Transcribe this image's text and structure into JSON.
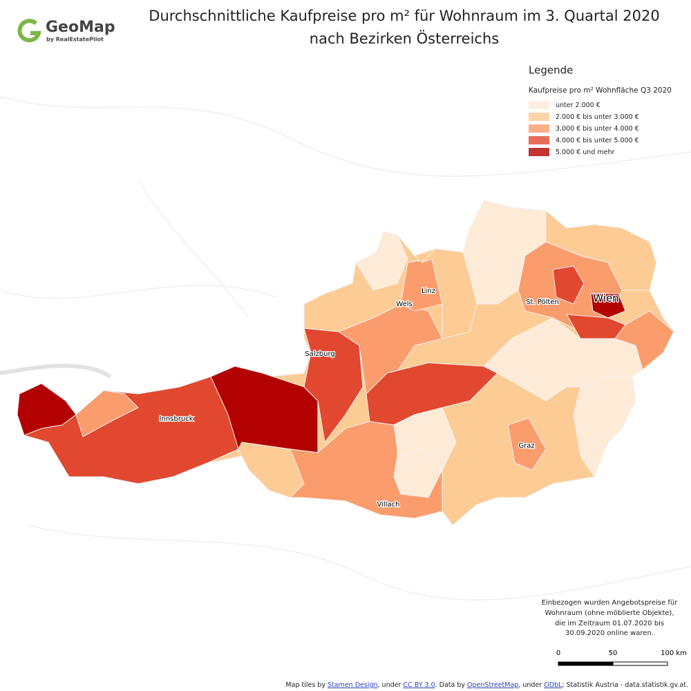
{
  "header": {
    "logo": "GeoMap",
    "logo_sub": "by RealEstatePilot",
    "title_lines": [
      "Durchschnittliche Kaufpreise pro m² für Wohnraum im 3. Quartal 2020",
      "nach Bezirken Österreichs"
    ]
  },
  "legend": {
    "title": "Legende",
    "subtitle": "Kaufpreise pro m² Wohnfläche Q3 2020",
    "items": [
      {
        "label": "unter 2.000 €",
        "color": "#fdebd7"
      },
      {
        "label": "2.000 € bis unter 3.000 €",
        "color": "#fdcb94"
      },
      {
        "label": "3.000 € bis unter 4.000 €",
        "color": "#fb9c6c"
      },
      {
        "label": "4.000 € bis unter 5.000 €",
        "color": "#e1482f"
      },
      {
        "label": "5.000 € und mehr",
        "color": "#b30000"
      }
    ]
  },
  "map": {
    "labels": [
      "Linz",
      "Wels",
      "St. Pölten",
      "Wien",
      "Salzburg",
      "Innsbruck",
      "Graz",
      "Villach"
    ]
  },
  "note": {
    "lines": [
      "Einbezogen wurden Angebotspreise für",
      "Wohnraum (ohne möblierte Objekte),",
      "die im Zeitraum 01.07.2020 bis",
      "30.09.2020 online waren."
    ]
  },
  "scale_bar": {
    "labels": [
      "0",
      "50",
      "100 km"
    ]
  },
  "attribution": {
    "parts": [
      "Map tiles by ",
      "Stamen Design",
      ", under ",
      "CC BY 3.0",
      ". Data by ",
      "OpenStreetMap",
      ", under ",
      "ODbL",
      "; Statistik Austria - data.statistik.gv.at."
    ]
  }
}
